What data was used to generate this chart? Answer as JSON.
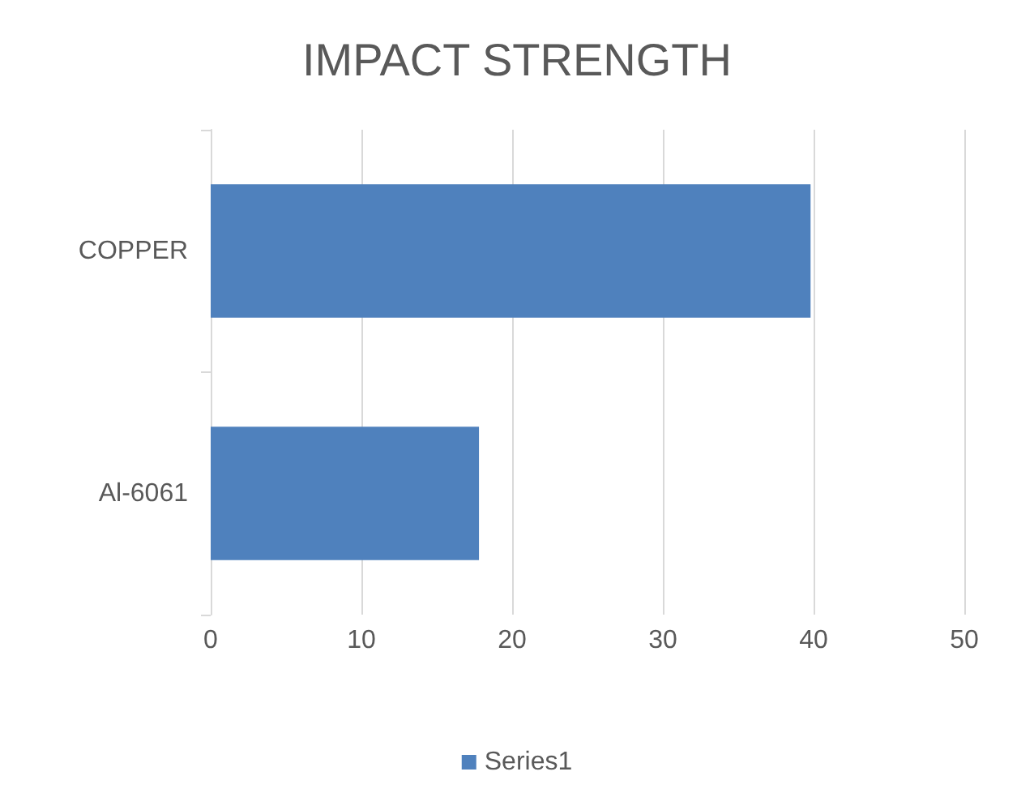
{
  "chart_data": {
    "type": "bar",
    "orientation": "horizontal",
    "title": "IMPACT STRENGTH",
    "categories": [
      "COPPER",
      "Al-6061"
    ],
    "series": [
      {
        "name": "Series1",
        "color": "#4f81bd",
        "values": [
          39.8,
          17.8
        ]
      }
    ],
    "xlim": [
      0,
      50
    ],
    "xticks": [
      0,
      10,
      20,
      30,
      40,
      50
    ],
    "grid": "x",
    "legend": "bottom"
  }
}
